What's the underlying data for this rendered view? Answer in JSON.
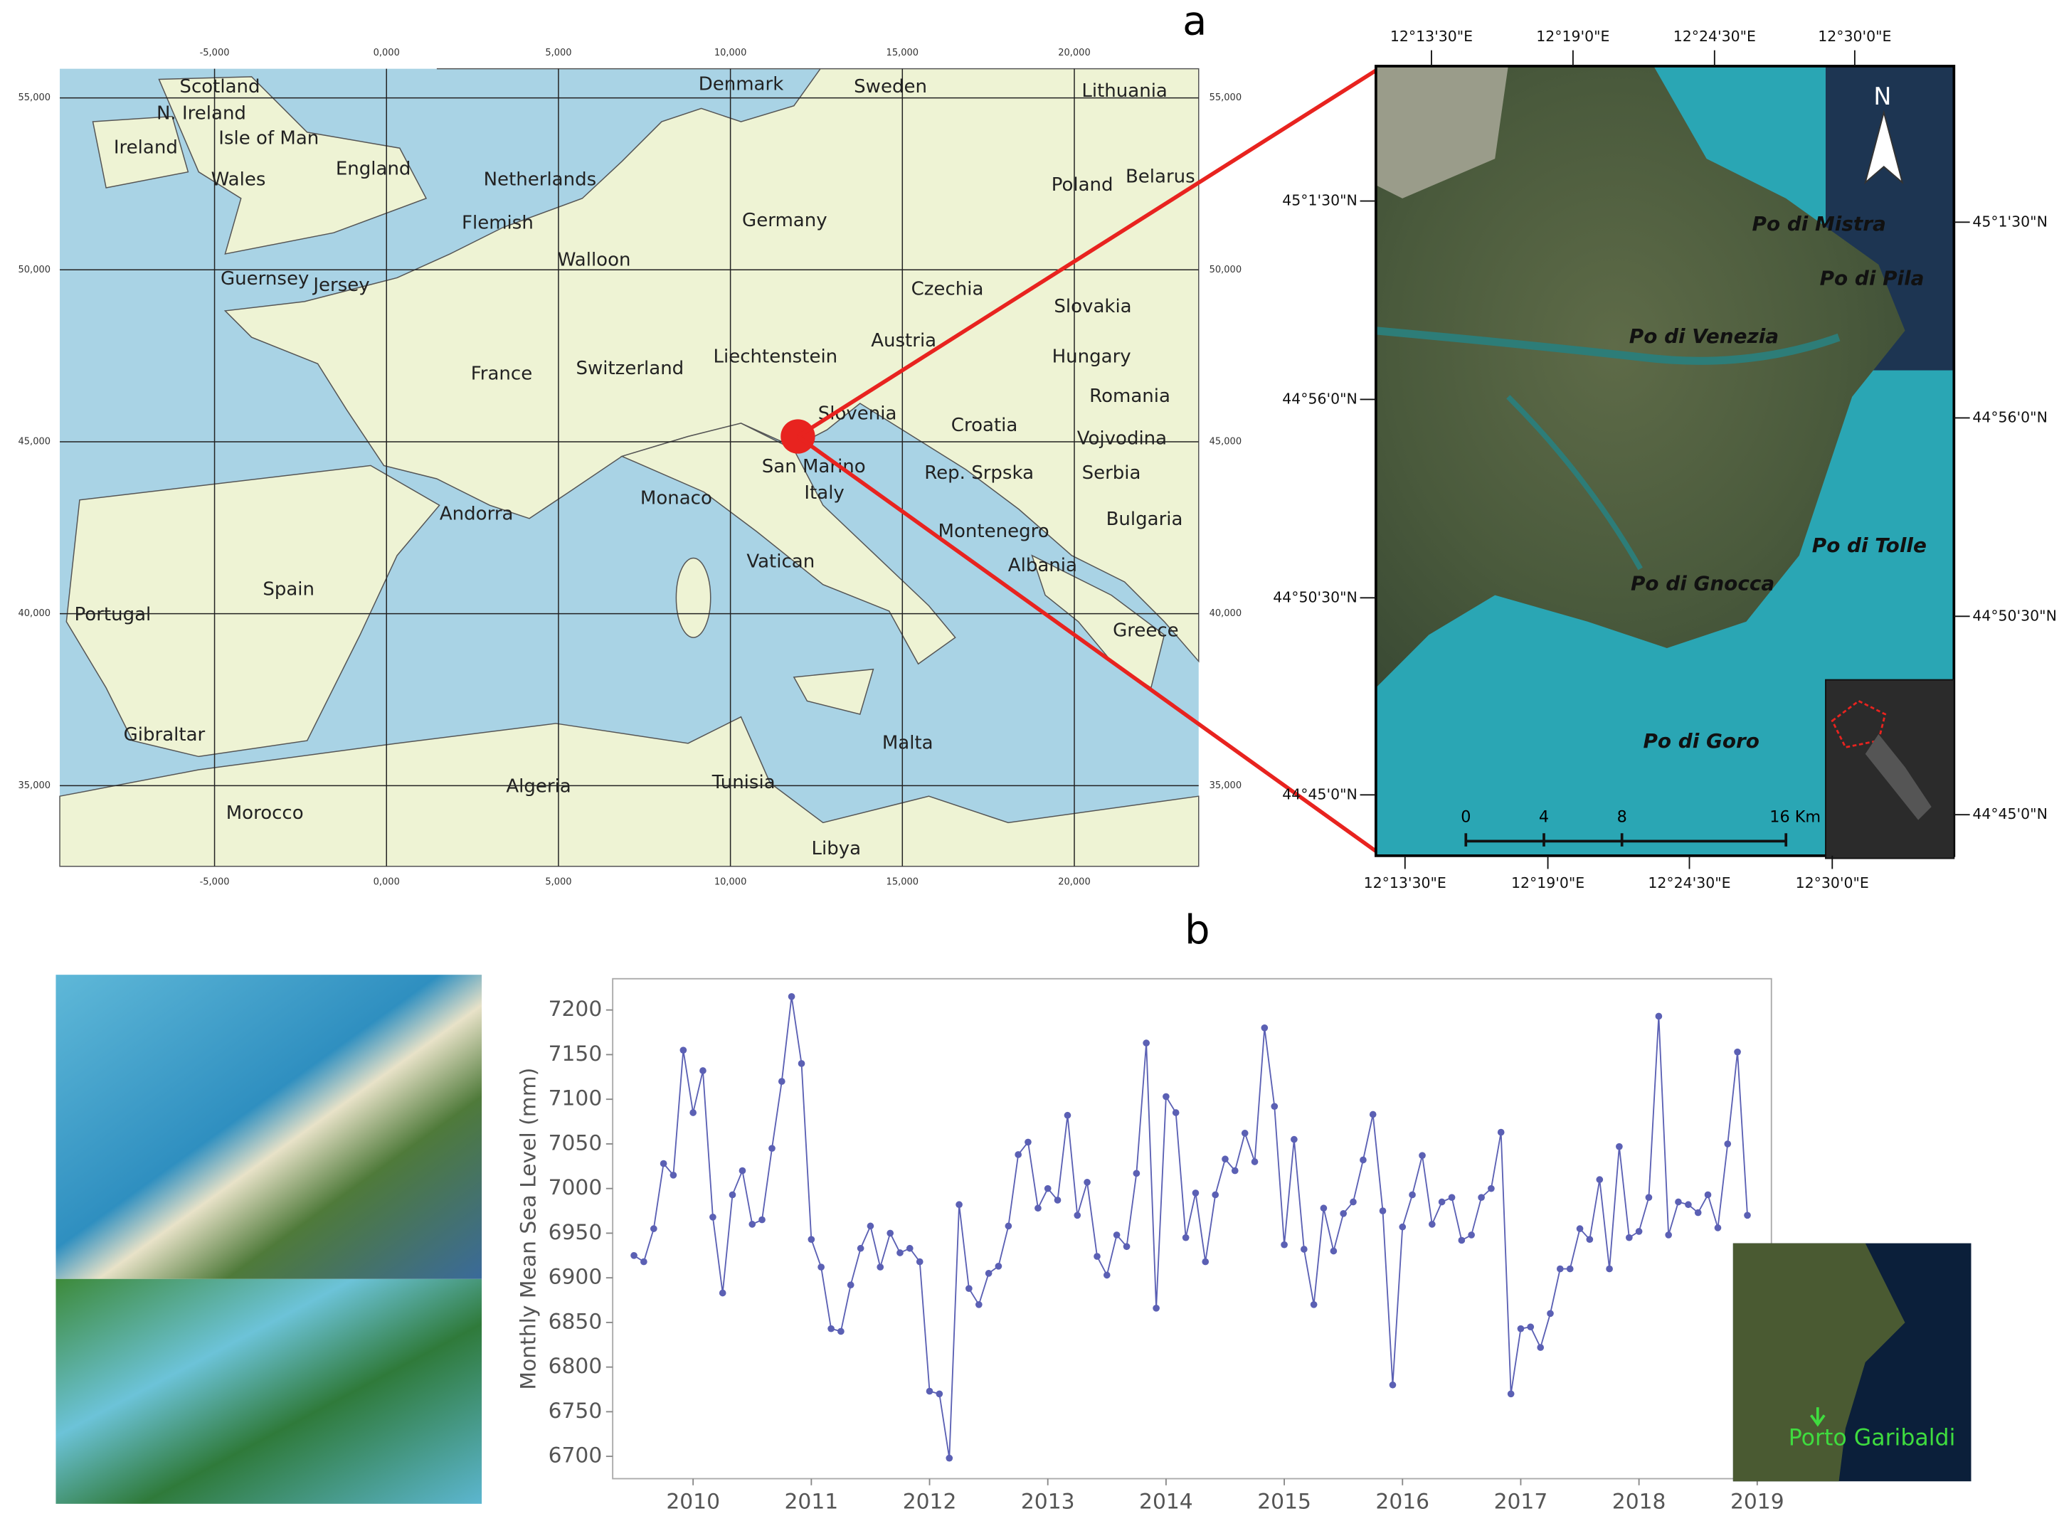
{
  "panel_labels": [
    "a",
    "b"
  ],
  "europe_map": {
    "x_labels": [
      "-5,000",
      "0,000",
      "5,000",
      "10,000",
      "15,000",
      "20,000"
    ],
    "y_labels": [
      "55,000",
      "50,000",
      "45,000",
      "40,000",
      "35,000"
    ],
    "places": [
      "Scotland",
      "N. Ireland",
      "Ireland",
      "Isle of Man",
      "Wales",
      "England",
      "Netherlands",
      "Flemish",
      "Walloon",
      "Guernsey",
      "Jersey",
      "Germany",
      "Denmark",
      "Sweden",
      "Lithuania",
      "Poland",
      "Belarus",
      "Czechia",
      "Slovakia",
      "Austria",
      "Hungary",
      "Liechtenstein",
      "Switzerland",
      "France",
      "Romania",
      "Slovenia",
      "Croatia",
      "Vojvodina",
      "San Marino",
      "Rep. Srpska",
      "Serbia",
      "Italy",
      "Monaco",
      "Andorra",
      "Bulgaria",
      "Montenegro",
      "Vatican",
      "Albania",
      "Spain",
      "Portugal",
      "Greece",
      "Gibraltar",
      "Malta",
      "Tunisia",
      "Algeria",
      "Morocco",
      "Libya"
    ]
  },
  "delta_map": {
    "lon_labels": [
      "12°13'30\"E",
      "12°19'0\"E",
      "12°24'30\"E",
      "12°30'0\"E"
    ],
    "lat_labels": [
      "45°1'30\"N",
      "44°56'0\"N",
      "44°50'30\"N",
      "44°45'0\"N"
    ],
    "branches": [
      "Po di Mistra",
      "Po di Pila",
      "Po di Venezia",
      "Po di Tolle",
      "Po di Gnocca",
      "Po di Goro"
    ],
    "north": "N",
    "scale_labels": [
      "0",
      "4",
      "8",
      "16 Km"
    ]
  },
  "inset": {
    "label": "Porto Garibaldi"
  },
  "chart_data": {
    "type": "line",
    "y_label": "Monthly Mean Sea Level (mm)",
    "color": "#5b60b4",
    "x": [
      2009.5,
      2009.583,
      2009.667,
      2009.75,
      2009.833,
      2009.917,
      2010.0,
      2010.083,
      2010.167,
      2010.25,
      2010.333,
      2010.417,
      2010.5,
      2010.583,
      2010.667,
      2010.75,
      2010.833,
      2010.917,
      2011.0,
      2011.083,
      2011.167,
      2011.25,
      2011.333,
      2011.417,
      2011.5,
      2011.583,
      2011.667,
      2011.75,
      2011.833,
      2011.917,
      2012.0,
      2012.083,
      2012.167,
      2012.25,
      2012.333,
      2012.417,
      2012.5,
      2012.583,
      2012.667,
      2012.75,
      2012.833,
      2012.917,
      2013.0,
      2013.083,
      2013.167,
      2013.25,
      2013.333,
      2013.417,
      2013.5,
      2013.583,
      2013.667,
      2013.75,
      2013.833,
      2013.917,
      2014.0,
      2014.083,
      2014.167,
      2014.25,
      2014.333,
      2014.417,
      2014.5,
      2014.583,
      2014.667,
      2014.75,
      2014.833,
      2014.917,
      2015.0,
      2015.083,
      2015.167,
      2015.25,
      2015.333,
      2015.417,
      2015.5,
      2015.583,
      2015.667,
      2015.75,
      2015.833,
      2015.917,
      2016.0,
      2016.083,
      2016.167,
      2016.25,
      2016.333,
      2016.417,
      2016.5,
      2016.583,
      2016.667,
      2016.75,
      2016.833,
      2016.917,
      2017.0,
      2017.083,
      2017.167,
      2017.25,
      2017.333,
      2017.417,
      2017.5,
      2017.583,
      2017.667,
      2017.75,
      2017.833,
      2017.917,
      2018.0,
      2018.083,
      2018.167,
      2018.25,
      2018.333,
      2018.417,
      2018.5,
      2018.583,
      2018.667,
      2018.75,
      2018.833,
      2018.917
    ],
    "values": [
      6925,
      6918,
      6955,
      7028,
      7015,
      7155,
      7085,
      7132,
      6968,
      6883,
      6993,
      7020,
      6960,
      6965,
      7045,
      7120,
      7215,
      7140,
      6943,
      6912,
      6843,
      6840,
      6892,
      6933,
      6958,
      6912,
      6950,
      6928,
      6933,
      6918,
      6773,
      6770,
      6698,
      6982,
      6888,
      6870,
      6905,
      6913,
      6958,
      7038,
      7052,
      6978,
      7000,
      6987,
      7082,
      6970,
      7007,
      6924,
      6903,
      6948,
      6935,
      7017,
      7163,
      6866,
      7103,
      7085,
      6945,
      6995,
      6918,
      6993,
      7033,
      7020,
      7062,
      7030,
      7180,
      7092,
      6937,
      7055,
      6932,
      6870,
      6978,
      6930,
      6972,
      6985,
      7032,
      7083,
      6975,
      6780,
      6957,
      6993,
      7037,
      6960,
      6985,
      6990,
      6942,
      6948,
      6990,
      7000,
      7063,
      6770,
      6843,
      6845,
      6822,
      6860,
      6910,
      6910,
      6955,
      6943,
      7010,
      6910,
      7047,
      6945,
      6952,
      6990,
      7193,
      6948,
      6985,
      6982,
      6973,
      6993,
      6956,
      7050,
      7153,
      6970
    ],
    "xlim": [
      2009.32,
      2019.12
    ],
    "xticks": [
      2010,
      2011,
      2012,
      2013,
      2014,
      2015,
      2016,
      2017,
      2018,
      2019
    ],
    "ylim": [
      6675,
      7235
    ],
    "yticks": [
      6700,
      6750,
      6800,
      6850,
      6900,
      6950,
      7000,
      7050,
      7100,
      7150,
      7200
    ]
  }
}
